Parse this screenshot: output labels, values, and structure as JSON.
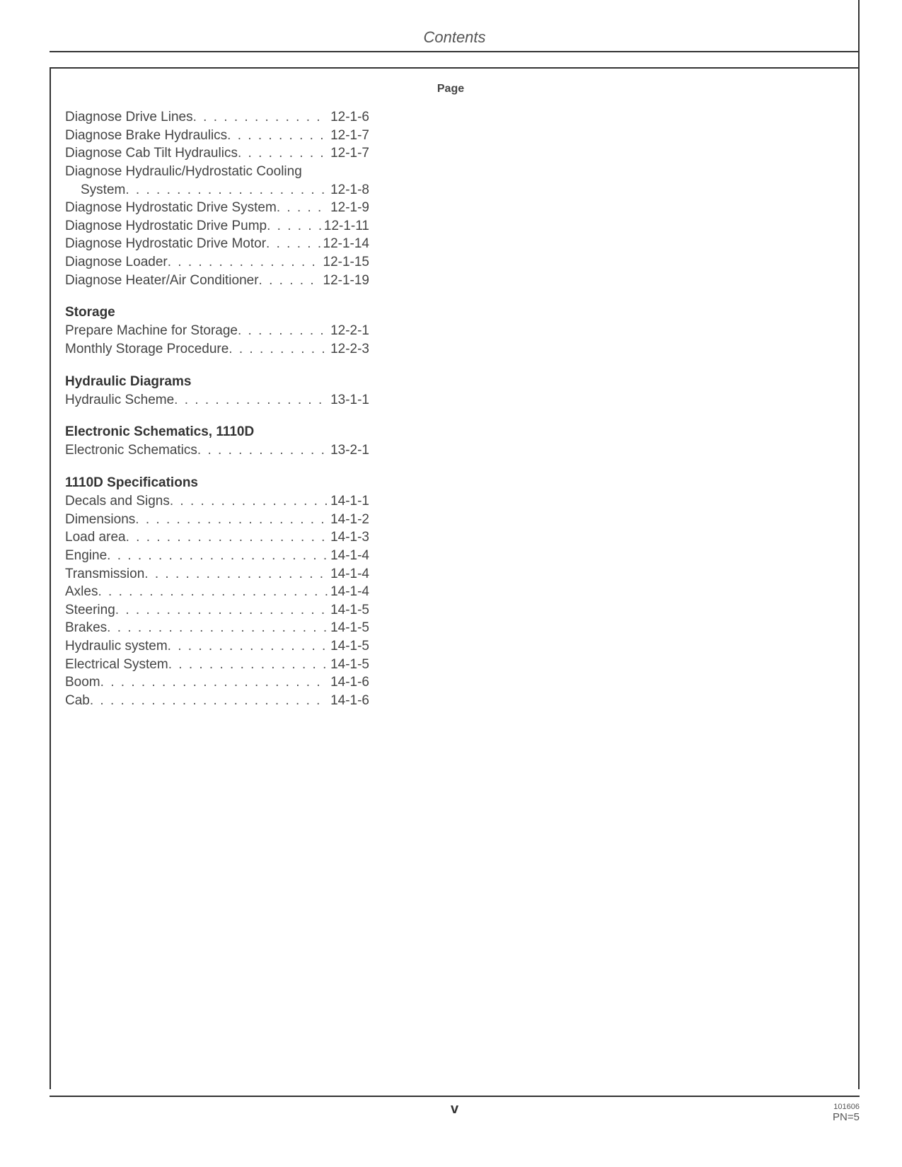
{
  "header": {
    "title": "Contents"
  },
  "column_header": "Page",
  "sections": [
    {
      "heading": null,
      "entries": [
        {
          "title": "Diagnose Drive Lines",
          "page": "12-1-6",
          "wrap": false
        },
        {
          "title": "Diagnose Brake Hydraulics",
          "page": "12-1-7",
          "wrap": false
        },
        {
          "title": "Diagnose Cab Tilt Hydraulics",
          "page": "12-1-7",
          "wrap": false
        },
        {
          "title": "Diagnose Hydraulic/Hydrostatic Cooling",
          "cont": "System",
          "page": "12-1-8",
          "wrap": true
        },
        {
          "title": "Diagnose Hydrostatic Drive System",
          "page": "12-1-9",
          "wrap": false
        },
        {
          "title": "Diagnose Hydrostatic Drive Pump",
          "page": "12-1-11",
          "wrap": false
        },
        {
          "title": "Diagnose Hydrostatic Drive Motor",
          "page": "12-1-14",
          "wrap": false
        },
        {
          "title": "Diagnose Loader",
          "page": "12-1-15",
          "wrap": false
        },
        {
          "title": "Diagnose Heater/Air Conditioner",
          "page": "12-1-19",
          "wrap": false
        }
      ]
    },
    {
      "heading": "Storage",
      "entries": [
        {
          "title": "Prepare Machine for Storage",
          "page": "12-2-1",
          "wrap": false
        },
        {
          "title": "Monthly Storage Procedure",
          "page": "12-2-3",
          "wrap": false
        }
      ]
    },
    {
      "heading": "Hydraulic Diagrams",
      "entries": [
        {
          "title": "Hydraulic Scheme",
          "page": "13-1-1",
          "wrap": false
        }
      ]
    },
    {
      "heading": "Electronic Schematics, 1110D",
      "entries": [
        {
          "title": "Electronic Schematics",
          "page": "13-2-1",
          "wrap": false
        }
      ]
    },
    {
      "heading": "1110D Specifications",
      "entries": [
        {
          "title": "Decals and Signs",
          "page": "14-1-1",
          "wrap": false
        },
        {
          "title": "Dimensions",
          "page": "14-1-2",
          "wrap": false
        },
        {
          "title": "Load area",
          "page": "14-1-3",
          "wrap": false
        },
        {
          "title": "Engine",
          "page": "14-1-4",
          "wrap": false
        },
        {
          "title": "Transmission",
          "page": "14-1-4",
          "wrap": false
        },
        {
          "title": "Axles",
          "page": "14-1-4",
          "wrap": false
        },
        {
          "title": "Steering",
          "page": "14-1-5",
          "wrap": false
        },
        {
          "title": "Brakes",
          "page": "14-1-5",
          "wrap": false
        },
        {
          "title": "Hydraulic system",
          "page": "14-1-5",
          "wrap": false
        },
        {
          "title": "Electrical System",
          "page": "14-1-5",
          "wrap": false
        },
        {
          "title": "Boom",
          "page": "14-1-6",
          "wrap": false
        },
        {
          "title": "Cab",
          "page": "14-1-6",
          "wrap": false
        }
      ]
    }
  ],
  "footer": {
    "roman": "v",
    "code": "101606",
    "pn": "PN=5"
  }
}
